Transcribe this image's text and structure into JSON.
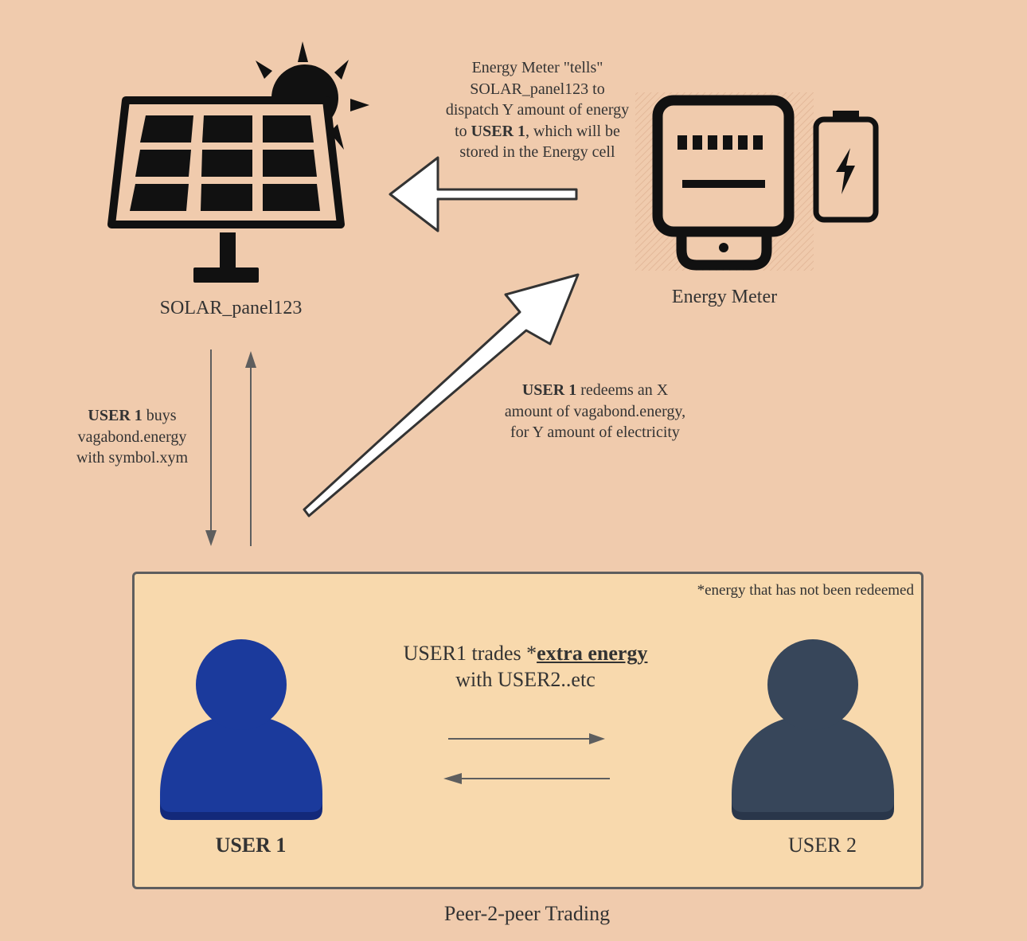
{
  "solar_panel": {
    "label": "SOLAR_panel123",
    "icon": "solar-panel-icon",
    "sun_icon": "sun-icon"
  },
  "energy_meter": {
    "label": "Energy Meter",
    "icon": "energy-meter-icon",
    "battery_icon": "battery-icon"
  },
  "dispatch_note": {
    "line1": "Energy Meter \"tells\"",
    "line2": "SOLAR_panel123 to",
    "line3": "dispatch Y amount of energy",
    "line4_pre": "to ",
    "line4_bold": "USER 1",
    "line4_post": ", which will be",
    "line5": "stored in the Energy cell"
  },
  "buy_note": {
    "line1_bold": "USER 1",
    "line1_post": " buys",
    "line2": "vagabond.energy",
    "line3": "with symbol.xym"
  },
  "redeem_note": {
    "line1_bold": "USER 1",
    "line1_post": " redeems an X",
    "line2": "amount of vagabond.energy,",
    "line3": "for Y amount of electricity"
  },
  "p2p": {
    "footnote": "*energy that has not been redeemed",
    "trade_pre": "USER1 trades *",
    "trade_emph": "extra energy",
    "trade_line2": "with USER2..etc",
    "caption": "Peer-2-peer Trading"
  },
  "users": [
    {
      "name": "USER 1",
      "color": "#1b3a9c",
      "shadow": "#13297a"
    },
    {
      "name": "USER 2",
      "color": "#37465a",
      "shadow": "#29364a"
    }
  ],
  "colors": {
    "background": "#f0cbad",
    "box": "#f8d9ad",
    "arrow": "#5e5e5e"
  }
}
